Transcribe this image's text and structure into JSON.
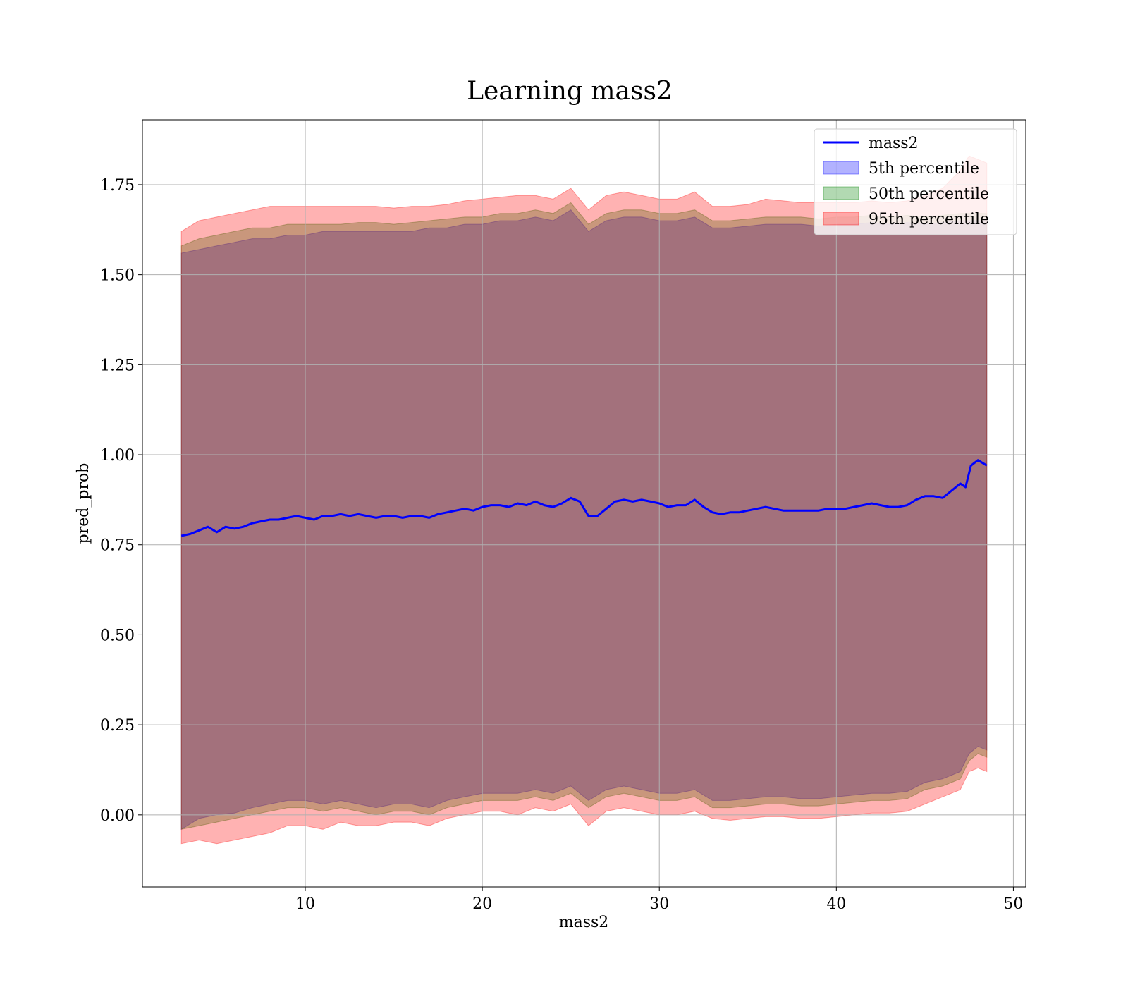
{
  "chart_data": {
    "type": "area",
    "title": "Learning mass2",
    "xlabel": "mass2",
    "ylabel": "pred_prob",
    "xlim": [
      0.8,
      50.7
    ],
    "ylim": [
      -0.2,
      1.93
    ],
    "xticks": [
      10,
      20,
      30,
      40,
      50
    ],
    "yticks": [
      0.0,
      0.25,
      0.5,
      0.75,
      1.0,
      1.25,
      1.5,
      1.75
    ],
    "xtick_labels": [
      "10",
      "20",
      "30",
      "40",
      "50"
    ],
    "ytick_labels": [
      "0.00",
      "0.25",
      "0.50",
      "0.75",
      "1.00",
      "1.25",
      "1.50",
      "1.75"
    ],
    "grid": true,
    "legend_position": "top-right",
    "legend": [
      "mass2",
      "5th percentile",
      "50th percentile",
      "95th percentile"
    ],
    "line_series": {
      "name": "mass2",
      "color": "#0000ff",
      "x": [
        3.0,
        3.5,
        4.0,
        4.5,
        5.0,
        5.5,
        6.0,
        6.5,
        7.0,
        7.5,
        8.0,
        8.5,
        9.0,
        9.5,
        10.0,
        10.5,
        11.0,
        11.5,
        12.0,
        12.5,
        13.0,
        13.5,
        14.0,
        14.5,
        15.0,
        15.5,
        16.0,
        16.5,
        17.0,
        17.5,
        18.0,
        18.5,
        19.0,
        19.5,
        20.0,
        20.5,
        21.0,
        21.5,
        22.0,
        22.5,
        23.0,
        23.5,
        24.0,
        24.5,
        25.0,
        25.5,
        26.0,
        26.5,
        27.0,
        27.5,
        28.0,
        28.5,
        29.0,
        29.5,
        30.0,
        30.5,
        31.0,
        31.5,
        32.0,
        32.5,
        33.0,
        33.5,
        34.0,
        34.5,
        35.0,
        35.5,
        36.0,
        36.5,
        37.0,
        37.5,
        38.0,
        38.5,
        39.0,
        39.5,
        40.0,
        40.5,
        41.0,
        41.5,
        42.0,
        42.5,
        43.0,
        43.5,
        44.0,
        44.5,
        45.0,
        45.5,
        46.0,
        46.5,
        47.0,
        47.3,
        47.6,
        48.0,
        48.5
      ],
      "y": [
        0.775,
        0.78,
        0.79,
        0.8,
        0.785,
        0.8,
        0.795,
        0.8,
        0.81,
        0.815,
        0.82,
        0.82,
        0.825,
        0.83,
        0.825,
        0.82,
        0.83,
        0.83,
        0.835,
        0.83,
        0.835,
        0.83,
        0.825,
        0.83,
        0.83,
        0.825,
        0.83,
        0.83,
        0.825,
        0.835,
        0.84,
        0.845,
        0.85,
        0.845,
        0.855,
        0.86,
        0.86,
        0.855,
        0.865,
        0.86,
        0.87,
        0.86,
        0.855,
        0.865,
        0.88,
        0.87,
        0.83,
        0.83,
        0.85,
        0.87,
        0.875,
        0.87,
        0.875,
        0.87,
        0.865,
        0.855,
        0.86,
        0.86,
        0.875,
        0.855,
        0.84,
        0.835,
        0.84,
        0.84,
        0.845,
        0.85,
        0.855,
        0.85,
        0.845,
        0.845,
        0.845,
        0.845,
        0.845,
        0.85,
        0.85,
        0.85,
        0.855,
        0.86,
        0.865,
        0.86,
        0.855,
        0.855,
        0.86,
        0.875,
        0.885,
        0.885,
        0.88,
        0.9,
        0.92,
        0.91,
        0.97,
        0.985,
        0.97
      ]
    },
    "bands": [
      {
        "name": "5th percentile",
        "color": "#0000ff",
        "opacity": 0.3,
        "x": [
          3.0,
          4.0,
          5.0,
          6.0,
          7.0,
          8.0,
          9.0,
          10.0,
          11.0,
          12.0,
          13.0,
          14.0,
          15.0,
          16.0,
          17.0,
          18.0,
          19.0,
          20.0,
          21.0,
          22.0,
          23.0,
          24.0,
          25.0,
          26.0,
          27.0,
          28.0,
          29.0,
          30.0,
          31.0,
          32.0,
          33.0,
          34.0,
          35.0,
          36.0,
          37.0,
          38.0,
          39.0,
          40.0,
          41.0,
          42.0,
          43.0,
          44.0,
          45.0,
          46.0,
          47.0,
          47.5,
          48.0,
          48.5
        ],
        "lower": [
          -0.04,
          -0.01,
          0.0,
          0.005,
          0.02,
          0.03,
          0.04,
          0.04,
          0.03,
          0.04,
          0.03,
          0.02,
          0.03,
          0.03,
          0.02,
          0.04,
          0.05,
          0.06,
          0.06,
          0.06,
          0.07,
          0.06,
          0.08,
          0.04,
          0.07,
          0.08,
          0.07,
          0.06,
          0.06,
          0.07,
          0.04,
          0.04,
          0.045,
          0.05,
          0.05,
          0.045,
          0.045,
          0.05,
          0.055,
          0.06,
          0.06,
          0.065,
          0.09,
          0.1,
          0.12,
          0.17,
          0.19,
          0.18
        ],
        "upper": [
          1.56,
          1.57,
          1.58,
          1.59,
          1.6,
          1.6,
          1.61,
          1.61,
          1.62,
          1.62,
          1.62,
          1.62,
          1.62,
          1.62,
          1.63,
          1.63,
          1.64,
          1.64,
          1.65,
          1.65,
          1.66,
          1.65,
          1.68,
          1.62,
          1.65,
          1.66,
          1.66,
          1.65,
          1.65,
          1.66,
          1.63,
          1.63,
          1.635,
          1.64,
          1.64,
          1.64,
          1.635,
          1.64,
          1.64,
          1.645,
          1.64,
          1.645,
          1.64,
          1.645,
          1.65,
          1.65,
          1.65,
          1.65
        ]
      },
      {
        "name": "50th percentile",
        "color": "#008000",
        "opacity": 0.3,
        "x": [
          3.0,
          4.0,
          5.0,
          6.0,
          7.0,
          8.0,
          9.0,
          10.0,
          11.0,
          12.0,
          13.0,
          14.0,
          15.0,
          16.0,
          17.0,
          18.0,
          19.0,
          20.0,
          21.0,
          22.0,
          23.0,
          24.0,
          25.0,
          26.0,
          27.0,
          28.0,
          29.0,
          30.0,
          31.0,
          32.0,
          33.0,
          34.0,
          35.0,
          36.0,
          37.0,
          38.0,
          39.0,
          40.0,
          41.0,
          42.0,
          43.0,
          44.0,
          45.0,
          46.0,
          47.0,
          47.5,
          48.0,
          48.5
        ],
        "lower": [
          -0.04,
          -0.03,
          -0.02,
          -0.01,
          0.0,
          0.01,
          0.02,
          0.02,
          0.01,
          0.02,
          0.01,
          0.0,
          0.01,
          0.01,
          0.0,
          0.02,
          0.03,
          0.04,
          0.04,
          0.04,
          0.05,
          0.04,
          0.06,
          0.02,
          0.05,
          0.06,
          0.05,
          0.04,
          0.04,
          0.05,
          0.02,
          0.02,
          0.025,
          0.03,
          0.03,
          0.025,
          0.025,
          0.03,
          0.035,
          0.04,
          0.04,
          0.045,
          0.07,
          0.08,
          0.1,
          0.15,
          0.17,
          0.16
        ],
        "upper": [
          1.58,
          1.6,
          1.61,
          1.62,
          1.63,
          1.63,
          1.64,
          1.64,
          1.64,
          1.64,
          1.645,
          1.645,
          1.64,
          1.645,
          1.65,
          1.655,
          1.66,
          1.66,
          1.67,
          1.67,
          1.68,
          1.67,
          1.7,
          1.64,
          1.67,
          1.68,
          1.68,
          1.67,
          1.67,
          1.68,
          1.65,
          1.65,
          1.655,
          1.66,
          1.66,
          1.66,
          1.655,
          1.66,
          1.66,
          1.665,
          1.66,
          1.665,
          1.66,
          1.665,
          1.67,
          1.67,
          1.67,
          1.67
        ]
      },
      {
        "name": "95th percentile",
        "color": "#ff0000",
        "opacity": 0.3,
        "x": [
          3.0,
          4.0,
          5.0,
          6.0,
          7.0,
          8.0,
          9.0,
          10.0,
          11.0,
          12.0,
          13.0,
          14.0,
          15.0,
          16.0,
          17.0,
          18.0,
          19.0,
          20.0,
          21.0,
          22.0,
          23.0,
          24.0,
          25.0,
          26.0,
          27.0,
          28.0,
          29.0,
          30.0,
          31.0,
          32.0,
          33.0,
          34.0,
          35.0,
          36.0,
          37.0,
          38.0,
          39.0,
          40.0,
          41.0,
          42.0,
          43.0,
          44.0,
          45.0,
          46.0,
          47.0,
          47.5,
          48.0,
          48.5
        ],
        "lower": [
          -0.08,
          -0.07,
          -0.08,
          -0.07,
          -0.06,
          -0.05,
          -0.03,
          -0.03,
          -0.04,
          -0.02,
          -0.03,
          -0.03,
          -0.02,
          -0.02,
          -0.03,
          -0.01,
          0.0,
          0.01,
          0.01,
          0.0,
          0.02,
          0.01,
          0.03,
          -0.03,
          0.01,
          0.02,
          0.01,
          0.0,
          0.0,
          0.01,
          -0.01,
          -0.015,
          -0.01,
          -0.005,
          -0.005,
          -0.01,
          -0.01,
          -0.005,
          0.0,
          0.005,
          0.005,
          0.01,
          0.03,
          0.05,
          0.07,
          0.12,
          0.13,
          0.12
        ],
        "upper": [
          1.62,
          1.65,
          1.66,
          1.67,
          1.68,
          1.69,
          1.69,
          1.69,
          1.69,
          1.69,
          1.69,
          1.69,
          1.685,
          1.69,
          1.69,
          1.695,
          1.705,
          1.71,
          1.715,
          1.72,
          1.72,
          1.71,
          1.74,
          1.68,
          1.72,
          1.73,
          1.72,
          1.71,
          1.71,
          1.73,
          1.69,
          1.69,
          1.695,
          1.71,
          1.705,
          1.7,
          1.7,
          1.7,
          1.7,
          1.705,
          1.7,
          1.705,
          1.72,
          1.74,
          1.79,
          1.83,
          1.82,
          1.81
        ]
      }
    ]
  }
}
